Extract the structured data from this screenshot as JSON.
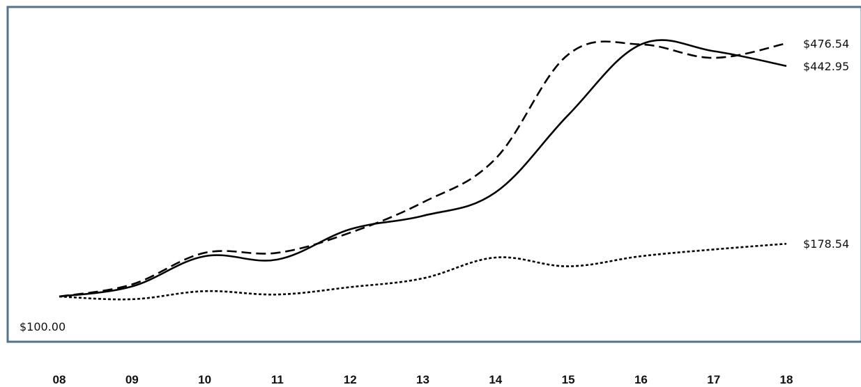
{
  "chart_data": {
    "type": "line",
    "x": [
      "08",
      "09",
      "10",
      "11",
      "12",
      "13",
      "14",
      "15",
      "16",
      "17",
      "18"
    ],
    "ylim": [
      70,
      510
    ],
    "grid": false,
    "legend": "none",
    "series": [
      {
        "style": "solid",
        "values": [
          100.0,
          115.0,
          160.0,
          155.0,
          200.0,
          220.0,
          255.0,
          370.0,
          475.0,
          465.0,
          442.95
        ]
      },
      {
        "style": "dashed",
        "values": [
          100.0,
          118.0,
          165.0,
          165.0,
          195.0,
          240.0,
          305.0,
          460.0,
          475.0,
          455.0,
          476.54
        ]
      },
      {
        "style": "dotted",
        "values": [
          100.0,
          96.0,
          108.0,
          103.0,
          114.0,
          127.0,
          158.0,
          145.0,
          160.0,
          170.0,
          178.54
        ]
      }
    ],
    "start_label": "$100.00",
    "end_labels": [
      "$442.95",
      "$476.54",
      "$178.54"
    ]
  }
}
